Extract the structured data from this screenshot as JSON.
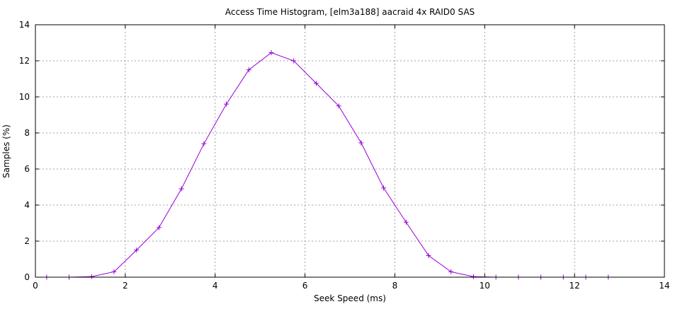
{
  "chart_data": {
    "type": "line",
    "title": "Access Time Histogram, [elm3a188] aacraid 4x RAID0 SAS",
    "xlabel": "Seek Speed (ms)",
    "ylabel": "Samples (%)",
    "xlim": [
      0,
      14
    ],
    "ylim": [
      0,
      14
    ],
    "xticks": [
      0,
      2,
      4,
      6,
      8,
      10,
      12,
      14
    ],
    "yticks": [
      0,
      2,
      4,
      6,
      8,
      10,
      12,
      14
    ],
    "grid": true,
    "series": [
      {
        "color": "#9400d3",
        "marker": "plus",
        "x": [
          0.25,
          0.75,
          1.25,
          1.75,
          2.25,
          2.75,
          3.25,
          3.75,
          4.25,
          4.75,
          5.25,
          5.75,
          6.25,
          6.75,
          7.25,
          7.75,
          8.25,
          8.75,
          9.25,
          9.75,
          10.25,
          10.75,
          11.25,
          11.75,
          12.25,
          12.75
        ],
        "y": [
          0.0,
          0.0,
          0.03,
          0.3,
          1.5,
          2.75,
          4.9,
          7.4,
          9.6,
          11.5,
          12.45,
          12.0,
          10.75,
          9.5,
          7.45,
          4.95,
          3.05,
          1.2,
          0.3,
          0.03,
          0.0,
          0.0,
          0.0,
          0.0,
          0.0,
          0.0
        ]
      }
    ]
  }
}
